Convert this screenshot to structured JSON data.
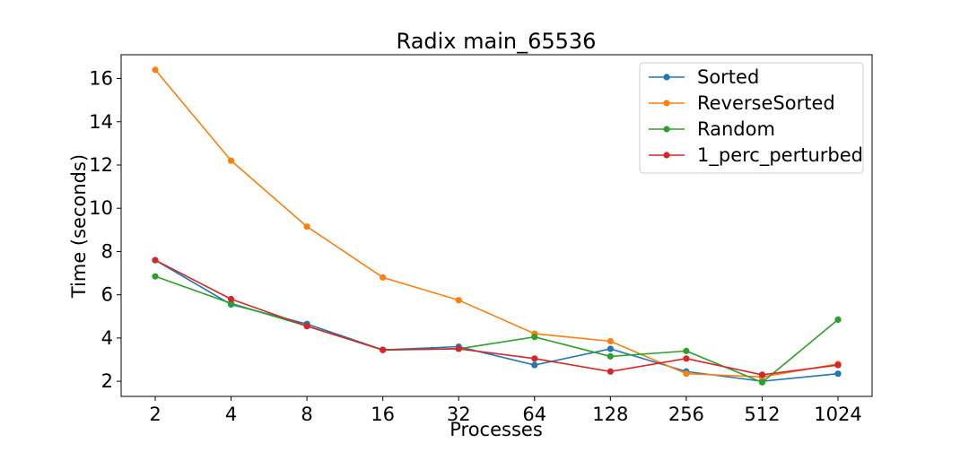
{
  "chart_data": {
    "type": "line",
    "title": "Radix main_65536",
    "xlabel": "Processes",
    "ylabel": "Time (seconds)",
    "categories": [
      "2",
      "4",
      "8",
      "16",
      "32",
      "64",
      "128",
      "256",
      "512",
      "1024"
    ],
    "yticks": [
      2,
      4,
      6,
      8,
      10,
      12,
      14,
      16
    ],
    "ylim": [
      1.3,
      17.1
    ],
    "grid": false,
    "legend_position": "top-right",
    "series": [
      {
        "name": "Sorted",
        "color": "#1f77b4",
        "values": [
          7.6,
          5.55,
          4.65,
          3.45,
          3.6,
          2.75,
          3.5,
          2.45,
          2.0,
          2.35
        ]
      },
      {
        "name": "ReverseSorted",
        "color": "#ff7f0e",
        "values": [
          16.4,
          12.2,
          9.15,
          6.8,
          5.75,
          4.2,
          3.85,
          2.35,
          2.2,
          2.8
        ]
      },
      {
        "name": "Random",
        "color": "#2ca02c",
        "values": [
          6.85,
          5.6,
          4.55,
          3.45,
          3.5,
          4.05,
          3.15,
          3.4,
          1.95,
          4.85
        ]
      },
      {
        "name": "1_perc_perturbed",
        "color": "#d62728",
        "values": [
          7.6,
          5.8,
          4.55,
          3.45,
          3.5,
          3.05,
          2.45,
          3.05,
          2.3,
          2.75
        ]
      }
    ]
  }
}
